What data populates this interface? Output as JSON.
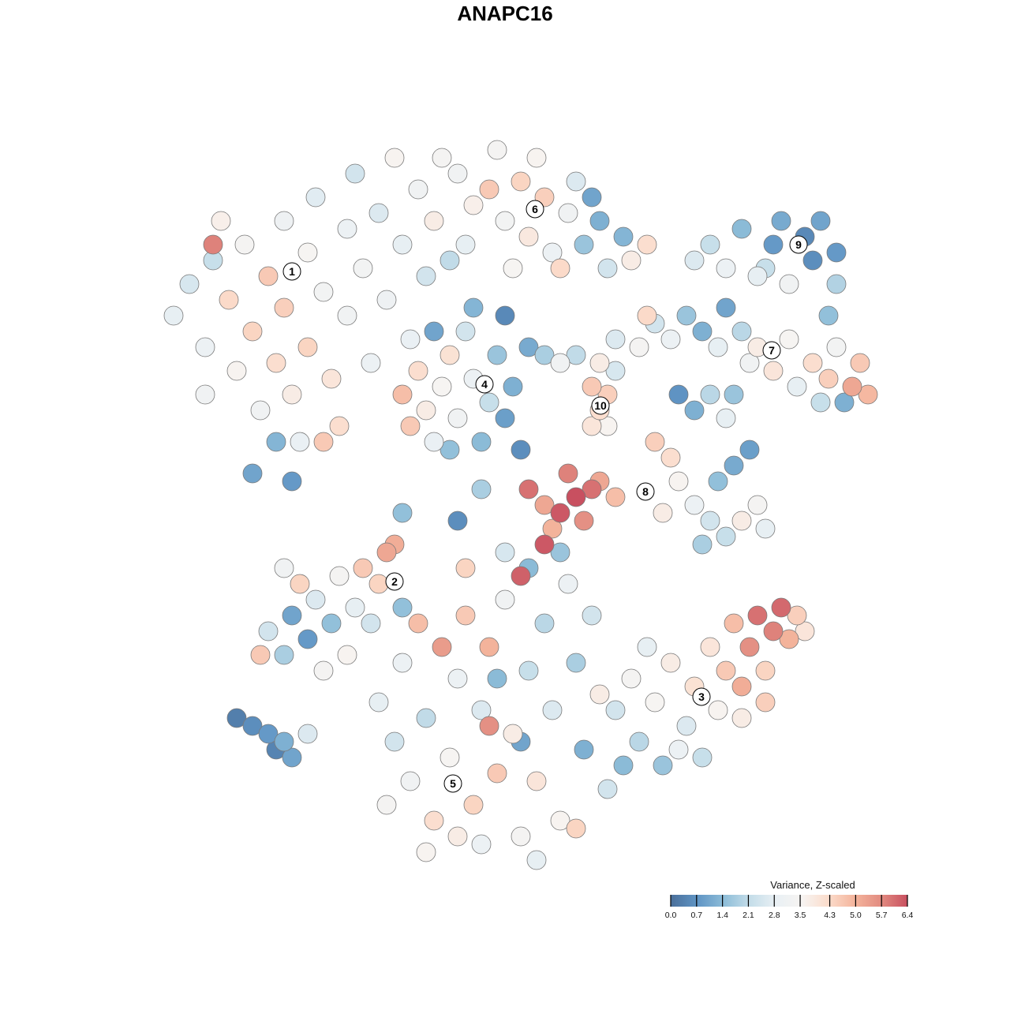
{
  "chart_data": {
    "type": "scatter",
    "title": "ANAPC16",
    "xlabel": "",
    "ylabel": "",
    "grid": false,
    "axes_visible": false,
    "legend": {
      "title": "Variance, Z-scaled",
      "placement": "bottom-right",
      "type": "colorbar",
      "ticks": [
        "0.0",
        "0.7",
        "1.4",
        "2.1",
        "2.8",
        "3.5",
        "4.3",
        "5.0",
        "5.7",
        "6.4"
      ],
      "range": [
        0,
        6.4
      ],
      "colors": [
        "#4a6f9a",
        "#5f94c4",
        "#8cbcd8",
        "#c4dde9",
        "#e9f0f4",
        "#f7f4f2",
        "#fbdccb",
        "#f4b49c",
        "#e28b80",
        "#c85060"
      ]
    },
    "cluster_labels": [
      {
        "label": "1",
        "x": -27,
        "y": 29.6
      },
      {
        "label": "6",
        "x": 3.8,
        "y": 37.5
      },
      {
        "label": "9",
        "x": 37.2,
        "y": 33
      },
      {
        "label": "4",
        "x": -2.6,
        "y": 15.3
      },
      {
        "label": "10",
        "x": 12.1,
        "y": 12.6
      },
      {
        "label": "7",
        "x": 33.8,
        "y": 19.6
      },
      {
        "label": "8",
        "x": 17.8,
        "y": 1.7
      },
      {
        "label": "2",
        "x": -14,
        "y": -9.7
      },
      {
        "label": "3",
        "x": 24.9,
        "y": -24.3
      },
      {
        "label": "5",
        "x": -6.6,
        "y": -35.3
      }
    ],
    "points_format": [
      "x",
      "y",
      "value"
    ],
    "points": [
      [
        -42,
        24,
        2.8
      ],
      [
        -40,
        28,
        2.5
      ],
      [
        -38,
        20,
        3
      ],
      [
        -37,
        31,
        2.2
      ],
      [
        -35,
        26,
        4.3
      ],
      [
        -34,
        17,
        3.6
      ],
      [
        -33,
        33,
        3.4
      ],
      [
        -32,
        22,
        4.4
      ],
      [
        -31,
        12,
        3.2
      ],
      [
        -30,
        29,
        4.6
      ],
      [
        -29,
        18,
        4.2
      ],
      [
        -28,
        36,
        3.1
      ],
      [
        -28,
        25,
        4.5
      ],
      [
        -27,
        14,
        3.8
      ],
      [
        -26,
        8,
        2.9
      ],
      [
        -25,
        32,
        3.5
      ],
      [
        -25,
        20,
        4.4
      ],
      [
        -24,
        39,
        2.7
      ],
      [
        -23,
        27,
        3.3
      ],
      [
        -22,
        16,
        4.0
      ],
      [
        -21,
        10,
        4.2
      ],
      [
        -20,
        35,
        3.0
      ],
      [
        -20,
        24,
        3.2
      ],
      [
        -19,
        42,
        2.4
      ],
      [
        -18,
        30,
        3.3
      ],
      [
        -17,
        18,
        3.0
      ],
      [
        -16,
        37,
        2.6
      ],
      [
        -15,
        26,
        3.1
      ],
      [
        -14,
        44,
        3.6
      ],
      [
        -13,
        33,
        2.8
      ],
      [
        -12,
        21,
        2.9
      ],
      [
        -11,
        40,
        3.2
      ],
      [
        -10,
        29,
        2.4
      ],
      [
        -9,
        36,
        3.8
      ],
      [
        -8,
        44,
        3.4
      ],
      [
        -7,
        31,
        2.1
      ],
      [
        -29,
        8,
        1.3
      ],
      [
        -32,
        4,
        1.0
      ],
      [
        -27,
        3,
        0.8
      ],
      [
        -23,
        8,
        4.6
      ],
      [
        -38,
        14,
        3.2
      ],
      [
        -36,
        36,
        3.7
      ],
      [
        -37,
        33,
        5.8
      ],
      [
        -6,
        42,
        3.2
      ],
      [
        -4,
        38,
        3.7
      ],
      [
        -2,
        40,
        4.6
      ],
      [
        0,
        36,
        3.3
      ],
      [
        2,
        41,
        4.4
      ],
      [
        3,
        34,
        3.9
      ],
      [
        5,
        39,
        4.5
      ],
      [
        6,
        32,
        3.0
      ],
      [
        8,
        37,
        3.2
      ],
      [
        9,
        41,
        2.6
      ],
      [
        10,
        33,
        1.6
      ],
      [
        12,
        36,
        1.2
      ],
      [
        13,
        30,
        2.4
      ],
      [
        15,
        34,
        1.3
      ],
      [
        16,
        31,
        3.8
      ],
      [
        18,
        33,
        4.2
      ],
      [
        -5,
        33,
        2.8
      ],
      [
        1,
        30,
        3.5
      ],
      [
        7,
        30,
        4.3
      ],
      [
        11,
        39,
        1.0
      ],
      [
        -1,
        45,
        3.4
      ],
      [
        4,
        44,
        3.6
      ],
      [
        24,
        31,
        2.6
      ],
      [
        26,
        33,
        2.2
      ],
      [
        28,
        30,
        3.0
      ],
      [
        30,
        35,
        1.4
      ],
      [
        32,
        29,
        2.8
      ],
      [
        34,
        33,
        0.8
      ],
      [
        35,
        36,
        1.1
      ],
      [
        36,
        28,
        3.2
      ],
      [
        38,
        34,
        0.5
      ],
      [
        39,
        31,
        0.6
      ],
      [
        40,
        36,
        1.0
      ],
      [
        42,
        32,
        0.8
      ],
      [
        42,
        28,
        1.9
      ],
      [
        41,
        24,
        1.5
      ],
      [
        33,
        30,
        2.2
      ],
      [
        14,
        21,
        2.6
      ],
      [
        17,
        20,
        3.4
      ],
      [
        19,
        23,
        2.4
      ],
      [
        21,
        21,
        3.0
      ],
      [
        23,
        24,
        1.6
      ],
      [
        25,
        22,
        1.2
      ],
      [
        27,
        20,
        2.8
      ],
      [
        28,
        25,
        1.0
      ],
      [
        30,
        22,
        2.0
      ],
      [
        31,
        18,
        3.2
      ],
      [
        18,
        24,
        4.3
      ],
      [
        32,
        20,
        3.8
      ],
      [
        34,
        17,
        4.0
      ],
      [
        36,
        21,
        3.5
      ],
      [
        37,
        15,
        2.8
      ],
      [
        39,
        18,
        4.2
      ],
      [
        41,
        16,
        4.5
      ],
      [
        42,
        20,
        3.3
      ],
      [
        44,
        15,
        5.2
      ],
      [
        46,
        14,
        4.9
      ],
      [
        45,
        18,
        4.6
      ],
      [
        40,
        13,
        2.2
      ],
      [
        43,
        13,
        1.2
      ],
      [
        -13,
        14,
        4.8
      ],
      [
        -12,
        10,
        4.6
      ],
      [
        -11,
        17,
        4.2
      ],
      [
        -10,
        12,
        3.8
      ],
      [
        -9,
        8,
        2.9
      ],
      [
        -8,
        15,
        3.5
      ],
      [
        -7,
        19,
        4.1
      ],
      [
        -6,
        11,
        3.2
      ],
      [
        -5,
        22,
        2.4
      ],
      [
        -4,
        16,
        3.0
      ],
      [
        -3,
        8,
        1.4
      ],
      [
        -2,
        13,
        2.2
      ],
      [
        -1,
        19,
        1.6
      ],
      [
        0,
        11,
        0.9
      ],
      [
        1,
        15,
        1.2
      ],
      [
        2,
        7,
        0.6
      ],
      [
        -7,
        7,
        1.5
      ],
      [
        -9,
        22,
        1.0
      ],
      [
        -4,
        25,
        1.3
      ],
      [
        0,
        24,
        0.5
      ],
      [
        3,
        20,
        1.1
      ],
      [
        11,
        15,
        4.6
      ],
      [
        12,
        12,
        4.2
      ],
      [
        13,
        14,
        4.5
      ],
      [
        11,
        10,
        4.0
      ],
      [
        13,
        10,
        3.6
      ],
      [
        5,
        19,
        1.8
      ],
      [
        7,
        18,
        3.2
      ],
      [
        9,
        19,
        2.1
      ],
      [
        12,
        18,
        3.8
      ],
      [
        14,
        17,
        2.5
      ],
      [
        22,
        14,
        0.7
      ],
      [
        24,
        12,
        1.2
      ],
      [
        26,
        14,
        2.0
      ],
      [
        28,
        11,
        2.8
      ],
      [
        29,
        14,
        1.6
      ],
      [
        19,
        8,
        4.5
      ],
      [
        21,
        6,
        4.2
      ],
      [
        22,
        3,
        3.6
      ],
      [
        24,
        0,
        3.0
      ],
      [
        26,
        -2,
        2.4
      ],
      [
        28,
        -4,
        2.2
      ],
      [
        30,
        -2,
        3.8
      ],
      [
        32,
        0,
        3.4
      ],
      [
        33,
        -3,
        2.8
      ],
      [
        27,
        3,
        1.5
      ],
      [
        29,
        5,
        1.1
      ],
      [
        31,
        7,
        0.9
      ],
      [
        25,
        -5,
        1.8
      ],
      [
        20,
        -1,
        3.8
      ],
      [
        3,
        2,
        6.0
      ],
      [
        5,
        0,
        5.2
      ],
      [
        7,
        -1,
        6.3
      ],
      [
        9,
        1,
        6.4
      ],
      [
        10,
        -2,
        5.6
      ],
      [
        11,
        2,
        6.0
      ],
      [
        12,
        3,
        5.2
      ],
      [
        14,
        1,
        4.8
      ],
      [
        8,
        4,
        5.8
      ],
      [
        6,
        -3,
        5.0
      ],
      [
        5,
        -5,
        6.3
      ],
      [
        2,
        -9,
        6.2
      ],
      [
        -3,
        2,
        1.8
      ],
      [
        -6,
        -2,
        0.6
      ],
      [
        -13,
        -1,
        1.5
      ],
      [
        -30,
        -16,
        2.4
      ],
      [
        -28,
        -19,
        1.8
      ],
      [
        -27,
        -14,
        1.0
      ],
      [
        -25,
        -17,
        0.8
      ],
      [
        -24,
        -12,
        2.6
      ],
      [
        -26,
        -10,
        4.4
      ],
      [
        -22,
        -15,
        1.5
      ],
      [
        -21,
        -9,
        3.4
      ],
      [
        -19,
        -13,
        2.8
      ],
      [
        -18,
        -8,
        4.6
      ],
      [
        -16,
        -10,
        4.4
      ],
      [
        -15,
        -6,
        5.2
      ],
      [
        -14,
        -5,
        5.1
      ],
      [
        -20,
        -19,
        3.6
      ],
      [
        -23,
        -21,
        3.4
      ],
      [
        -31,
        -19,
        4.6
      ],
      [
        -17,
        -15,
        2.4
      ],
      [
        -28,
        -8,
        3.2
      ],
      [
        -34,
        -27,
        0.3
      ],
      [
        -32,
        -28,
        0.6
      ],
      [
        -30,
        -29,
        0.8
      ],
      [
        -28,
        -30,
        1.2
      ],
      [
        -27,
        -32,
        1.0
      ],
      [
        -29,
        -31,
        0.4
      ],
      [
        -25,
        -29,
        2.6
      ],
      [
        14,
        -26,
        2.4
      ],
      [
        16,
        -22,
        3.4
      ],
      [
        17,
        -30,
        2.0
      ],
      [
        19,
        -25,
        3.5
      ],
      [
        20,
        -33,
        1.6
      ],
      [
        21,
        -20,
        3.8
      ],
      [
        23,
        -28,
        2.6
      ],
      [
        24,
        -23,
        4.1
      ],
      [
        26,
        -18,
        4.0
      ],
      [
        27,
        -26,
        3.6
      ],
      [
        28,
        -21,
        4.6
      ],
      [
        29,
        -15,
        4.8
      ],
      [
        30,
        -23,
        5.1
      ],
      [
        31,
        -18,
        5.6
      ],
      [
        32,
        -14,
        6.0
      ],
      [
        33,
        -21,
        4.4
      ],
      [
        34,
        -16,
        5.8
      ],
      [
        35,
        -13,
        6.1
      ],
      [
        36,
        -17,
        5.0
      ],
      [
        37,
        -14,
        4.5
      ],
      [
        38,
        -16,
        4.0
      ],
      [
        25,
        -32,
        2.2
      ],
      [
        22,
        -31,
        3.0
      ],
      [
        30,
        -27,
        3.8
      ],
      [
        33,
        -25,
        4.5
      ],
      [
        18,
        -18,
        2.8
      ],
      [
        15,
        -33,
        1.4
      ],
      [
        -16,
        -25,
        2.8
      ],
      [
        -14,
        -30,
        2.4
      ],
      [
        -13,
        -20,
        3.0
      ],
      [
        -12,
        -35,
        3.2
      ],
      [
        -11,
        -15,
        4.8
      ],
      [
        -10,
        -27,
        2.1
      ],
      [
        -9,
        -40,
        4.2
      ],
      [
        -8,
        -18,
        5.4
      ],
      [
        -7,
        -32,
        3.5
      ],
      [
        -6,
        -22,
        3.0
      ],
      [
        -5,
        -14,
        4.6
      ],
      [
        -4,
        -38,
        4.4
      ],
      [
        -3,
        -26,
        2.6
      ],
      [
        -2,
        -18,
        5.0
      ],
      [
        -1,
        -34,
        4.6
      ],
      [
        0,
        -12,
        3.2
      ],
      [
        1,
        -29,
        3.8
      ],
      [
        2,
        -42,
        3.4
      ],
      [
        3,
        -21,
        2.2
      ],
      [
        4,
        -35,
        4.0
      ],
      [
        5,
        -15,
        2.0
      ],
      [
        6,
        -26,
        2.6
      ],
      [
        7,
        -40,
        3.6
      ],
      [
        8,
        -10,
        3.0
      ],
      [
        9,
        -20,
        1.8
      ],
      [
        10,
        -31,
        1.2
      ],
      [
        11,
        -14,
        2.4
      ],
      [
        12,
        -24,
        3.8
      ],
      [
        -15,
        -38,
        3.4
      ],
      [
        -10,
        -44,
        3.6
      ],
      [
        -3,
        -43,
        3.0
      ],
      [
        4,
        -45,
        2.8
      ],
      [
        9,
        -41,
        4.4
      ],
      [
        0,
        -6,
        2.5
      ],
      [
        3,
        -8,
        1.4
      ],
      [
        7,
        -6,
        1.6
      ],
      [
        -5,
        -8,
        4.4
      ],
      [
        2,
        -30,
        1.0
      ],
      [
        -2,
        -28,
        5.6
      ],
      [
        -6,
        -42,
        3.8
      ],
      [
        13,
        -36,
        2.4
      ],
      [
        -13,
        -13,
        1.5
      ],
      [
        -1,
        -22,
        1.4
      ]
    ]
  }
}
